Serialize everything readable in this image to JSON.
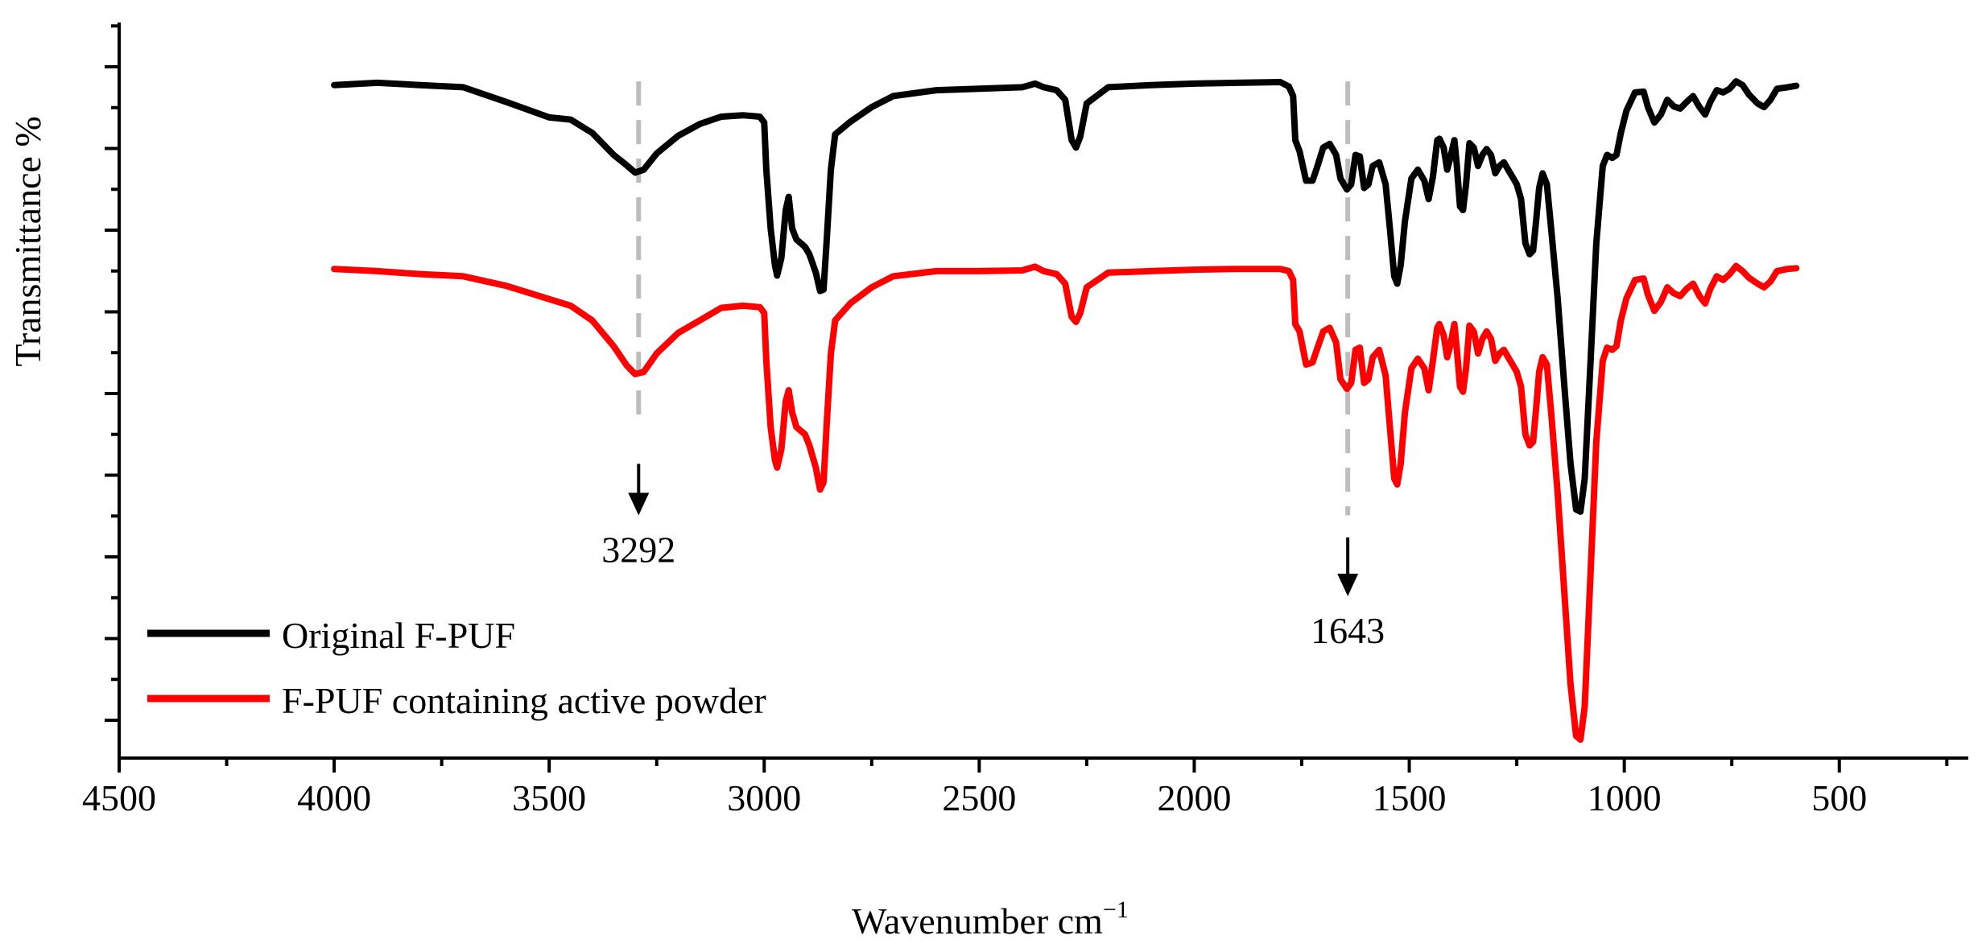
{
  "chart_data": {
    "type": "line",
    "title": "",
    "xlabel": "Wavenumber cm",
    "xlabel_sup": "−1",
    "ylabel": "Transmittance %",
    "xlim": [
      4500,
      200
    ],
    "ylim": [
      0,
      100
    ],
    "x_ticks": [
      4500,
      4000,
      3500,
      3000,
      2500,
      2000,
      1500,
      1000,
      500
    ],
    "x_tick_labels": [
      "4500",
      "4000",
      "3500",
      "3000",
      "2500",
      "2000",
      "1500",
      "1000",
      "500"
    ],
    "y_tick_labels_shown": false,
    "legend_position": "bottom-left",
    "series": [
      {
        "name": "Original F-PUF",
        "color": "#000000",
        "points": [
          [
            4000,
            91.5
          ],
          [
            3900,
            91.8
          ],
          [
            3800,
            91.5
          ],
          [
            3700,
            91.2
          ],
          [
            3600,
            89.2
          ],
          [
            3500,
            87.1
          ],
          [
            3450,
            86.8
          ],
          [
            3400,
            85.0
          ],
          [
            3350,
            82.0
          ],
          [
            3320,
            80.6
          ],
          [
            3300,
            79.6
          ],
          [
            3280,
            80.0
          ],
          [
            3250,
            82.2
          ],
          [
            3200,
            84.6
          ],
          [
            3150,
            86.2
          ],
          [
            3100,
            87.2
          ],
          [
            3050,
            87.4
          ],
          [
            3010,
            87.2
          ],
          [
            3000,
            86.4
          ],
          [
            2995,
            80.0
          ],
          [
            2985,
            72.0
          ],
          [
            2975,
            67.0
          ],
          [
            2970,
            65.6
          ],
          [
            2960,
            68.0
          ],
          [
            2950,
            74.5
          ],
          [
            2943,
            76.3
          ],
          [
            2935,
            72.0
          ],
          [
            2925,
            70.5
          ],
          [
            2915,
            70.0
          ],
          [
            2905,
            69.5
          ],
          [
            2895,
            68.5
          ],
          [
            2880,
            66.0
          ],
          [
            2870,
            63.5
          ],
          [
            2862,
            63.7
          ],
          [
            2855,
            70.0
          ],
          [
            2845,
            80.0
          ],
          [
            2835,
            84.8
          ],
          [
            2800,
            86.5
          ],
          [
            2750,
            88.5
          ],
          [
            2700,
            90.0
          ],
          [
            2600,
            90.8
          ],
          [
            2500,
            91.0
          ],
          [
            2400,
            91.2
          ],
          [
            2370,
            91.7
          ],
          [
            2350,
            91.2
          ],
          [
            2320,
            90.8
          ],
          [
            2300,
            89.5
          ],
          [
            2285,
            84.0
          ],
          [
            2275,
            83.0
          ],
          [
            2265,
            84.5
          ],
          [
            2250,
            89.0
          ],
          [
            2200,
            91.2
          ],
          [
            2100,
            91.5
          ],
          [
            2000,
            91.7
          ],
          [
            1900,
            91.8
          ],
          [
            1800,
            91.9
          ],
          [
            1780,
            91.3
          ],
          [
            1770,
            90.0
          ],
          [
            1765,
            84.0
          ],
          [
            1755,
            82.5
          ],
          [
            1740,
            78.5
          ],
          [
            1725,
            78.5
          ],
          [
            1715,
            80.2
          ],
          [
            1700,
            83.0
          ],
          [
            1685,
            83.5
          ],
          [
            1670,
            82.0
          ],
          [
            1660,
            78.8
          ],
          [
            1645,
            77.3
          ],
          [
            1635,
            78.0
          ],
          [
            1625,
            82.0
          ],
          [
            1615,
            81.8
          ],
          [
            1605,
            77.5
          ],
          [
            1595,
            78.0
          ],
          [
            1585,
            80.5
          ],
          [
            1570,
            81.0
          ],
          [
            1555,
            78.0
          ],
          [
            1545,
            72.0
          ],
          [
            1535,
            65.5
          ],
          [
            1528,
            64.5
          ],
          [
            1520,
            67.0
          ],
          [
            1510,
            73.0
          ],
          [
            1495,
            78.8
          ],
          [
            1480,
            80.0
          ],
          [
            1465,
            78.5
          ],
          [
            1455,
            76.0
          ],
          [
            1445,
            79.0
          ],
          [
            1435,
            84.0
          ],
          [
            1430,
            84.2
          ],
          [
            1420,
            83.0
          ],
          [
            1412,
            80.0
          ],
          [
            1405,
            81.5
          ],
          [
            1395,
            84.0
          ],
          [
            1390,
            81.0
          ],
          [
            1382,
            75.0
          ],
          [
            1375,
            74.5
          ],
          [
            1368,
            78.0
          ],
          [
            1360,
            83.6
          ],
          [
            1350,
            83.0
          ],
          [
            1340,
            80.5
          ],
          [
            1330,
            82.0
          ],
          [
            1320,
            82.8
          ],
          [
            1310,
            82.0
          ],
          [
            1300,
            79.5
          ],
          [
            1290,
            80.5
          ],
          [
            1280,
            81.0
          ],
          [
            1270,
            80.0
          ],
          [
            1260,
            79.0
          ],
          [
            1250,
            78.0
          ],
          [
            1240,
            76.0
          ],
          [
            1230,
            70.0
          ],
          [
            1220,
            68.5
          ],
          [
            1212,
            69.0
          ],
          [
            1205,
            73.0
          ],
          [
            1198,
            77.5
          ],
          [
            1190,
            79.5
          ],
          [
            1180,
            78.0
          ],
          [
            1170,
            72.0
          ],
          [
            1155,
            62.5
          ],
          [
            1140,
            51.0
          ],
          [
            1125,
            40.0
          ],
          [
            1112,
            33.8
          ],
          [
            1102,
            33.5
          ],
          [
            1092,
            38.0
          ],
          [
            1080,
            52.0
          ],
          [
            1065,
            70.0
          ],
          [
            1050,
            80.5
          ],
          [
            1040,
            82.0
          ],
          [
            1028,
            81.6
          ],
          [
            1018,
            82.0
          ],
          [
            1008,
            85.0
          ],
          [
            995,
            88.0
          ],
          [
            975,
            90.5
          ],
          [
            955,
            90.6
          ],
          [
            945,
            88.5
          ],
          [
            930,
            86.4
          ],
          [
            915,
            87.5
          ],
          [
            900,
            89.5
          ],
          [
            885,
            88.6
          ],
          [
            870,
            88.3
          ],
          [
            855,
            89.2
          ],
          [
            840,
            90.0
          ],
          [
            825,
            88.5
          ],
          [
            812,
            87.5
          ],
          [
            800,
            89.2
          ],
          [
            785,
            90.8
          ],
          [
            770,
            90.5
          ],
          [
            755,
            91.0
          ],
          [
            740,
            92.0
          ],
          [
            725,
            91.5
          ],
          [
            710,
            90.2
          ],
          [
            690,
            89.0
          ],
          [
            675,
            88.5
          ],
          [
            660,
            89.5
          ],
          [
            645,
            91.0
          ],
          [
            620,
            91.2
          ],
          [
            600,
            91.4
          ]
        ]
      },
      {
        "name": "F-PUF containing active powder",
        "color": "#ff0000",
        "points": [
          [
            4000,
            66.5
          ],
          [
            3900,
            66.2
          ],
          [
            3800,
            65.8
          ],
          [
            3700,
            65.5
          ],
          [
            3600,
            64.2
          ],
          [
            3500,
            62.4
          ],
          [
            3450,
            61.5
          ],
          [
            3400,
            59.5
          ],
          [
            3350,
            56.0
          ],
          [
            3320,
            53.4
          ],
          [
            3300,
            52.2
          ],
          [
            3280,
            52.5
          ],
          [
            3250,
            55.0
          ],
          [
            3200,
            57.8
          ],
          [
            3150,
            59.5
          ],
          [
            3100,
            61.2
          ],
          [
            3050,
            61.5
          ],
          [
            3010,
            61.3
          ],
          [
            3000,
            60.5
          ],
          [
            2995,
            54.0
          ],
          [
            2985,
            45.0
          ],
          [
            2975,
            40.5
          ],
          [
            2970,
            39.5
          ],
          [
            2960,
            42.0
          ],
          [
            2950,
            48.5
          ],
          [
            2943,
            50.0
          ],
          [
            2935,
            47.0
          ],
          [
            2925,
            45.0
          ],
          [
            2915,
            44.5
          ],
          [
            2905,
            44.0
          ],
          [
            2895,
            42.5
          ],
          [
            2880,
            39.5
          ],
          [
            2870,
            36.5
          ],
          [
            2862,
            37.5
          ],
          [
            2855,
            45.0
          ],
          [
            2845,
            55.0
          ],
          [
            2835,
            59.5
          ],
          [
            2800,
            61.8
          ],
          [
            2750,
            64.0
          ],
          [
            2700,
            65.5
          ],
          [
            2600,
            66.2
          ],
          [
            2500,
            66.2
          ],
          [
            2400,
            66.3
          ],
          [
            2370,
            66.8
          ],
          [
            2350,
            66.2
          ],
          [
            2320,
            65.8
          ],
          [
            2300,
            64.5
          ],
          [
            2285,
            60.0
          ],
          [
            2275,
            59.3
          ],
          [
            2265,
            60.5
          ],
          [
            2250,
            64.0
          ],
          [
            2200,
            66.0
          ],
          [
            2100,
            66.2
          ],
          [
            2000,
            66.4
          ],
          [
            1900,
            66.5
          ],
          [
            1800,
            66.5
          ],
          [
            1780,
            66.2
          ],
          [
            1770,
            65.0
          ],
          [
            1765,
            59.0
          ],
          [
            1755,
            58.0
          ],
          [
            1740,
            53.5
          ],
          [
            1725,
            53.8
          ],
          [
            1715,
            55.5
          ],
          [
            1700,
            58.0
          ],
          [
            1685,
            58.5
          ],
          [
            1670,
            56.5
          ],
          [
            1660,
            51.5
          ],
          [
            1645,
            50.2
          ],
          [
            1635,
            51.0
          ],
          [
            1625,
            55.5
          ],
          [
            1615,
            55.8
          ],
          [
            1605,
            51.0
          ],
          [
            1595,
            51.5
          ],
          [
            1585,
            54.5
          ],
          [
            1570,
            55.5
          ],
          [
            1555,
            52.0
          ],
          [
            1545,
            45.0
          ],
          [
            1535,
            38.0
          ],
          [
            1528,
            37.2
          ],
          [
            1520,
            40.0
          ],
          [
            1510,
            47.0
          ],
          [
            1495,
            53.0
          ],
          [
            1480,
            54.3
          ],
          [
            1465,
            53.0
          ],
          [
            1455,
            50.0
          ],
          [
            1445,
            54.0
          ],
          [
            1435,
            58.5
          ],
          [
            1430,
            59.0
          ],
          [
            1420,
            57.5
          ],
          [
            1412,
            54.5
          ],
          [
            1405,
            56.0
          ],
          [
            1395,
            59.0
          ],
          [
            1390,
            56.0
          ],
          [
            1382,
            50.5
          ],
          [
            1375,
            49.8
          ],
          [
            1368,
            53.0
          ],
          [
            1360,
            58.8
          ],
          [
            1350,
            58.0
          ],
          [
            1340,
            55.0
          ],
          [
            1330,
            57.0
          ],
          [
            1320,
            58.0
          ],
          [
            1310,
            57.0
          ],
          [
            1300,
            54.0
          ],
          [
            1290,
            55.0
          ],
          [
            1280,
            55.5
          ],
          [
            1270,
            54.5
          ],
          [
            1260,
            53.5
          ],
          [
            1250,
            52.5
          ],
          [
            1240,
            50.5
          ],
          [
            1230,
            44.0
          ],
          [
            1220,
            42.5
          ],
          [
            1212,
            43.0
          ],
          [
            1205,
            47.5
          ],
          [
            1198,
            52.5
          ],
          [
            1190,
            54.5
          ],
          [
            1180,
            53.5
          ],
          [
            1170,
            47.0
          ],
          [
            1155,
            36.0
          ],
          [
            1140,
            23.0
          ],
          [
            1125,
            10.0
          ],
          [
            1112,
            3.0
          ],
          [
            1102,
            2.5
          ],
          [
            1092,
            7.0
          ],
          [
            1080,
            23.0
          ],
          [
            1065,
            43.0
          ],
          [
            1050,
            54.0
          ],
          [
            1040,
            55.8
          ],
          [
            1028,
            55.5
          ],
          [
            1018,
            56.0
          ],
          [
            1008,
            59.5
          ],
          [
            995,
            62.5
          ],
          [
            975,
            65.0
          ],
          [
            955,
            65.2
          ],
          [
            945,
            63.0
          ],
          [
            930,
            60.8
          ],
          [
            915,
            62.0
          ],
          [
            900,
            64.0
          ],
          [
            885,
            63.2
          ],
          [
            870,
            62.8
          ],
          [
            855,
            63.8
          ],
          [
            840,
            64.5
          ],
          [
            825,
            62.8
          ],
          [
            812,
            61.8
          ],
          [
            800,
            63.8
          ],
          [
            785,
            65.5
          ],
          [
            770,
            65.0
          ],
          [
            755,
            65.8
          ],
          [
            740,
            66.9
          ],
          [
            725,
            66.2
          ],
          [
            710,
            65.3
          ],
          [
            690,
            64.5
          ],
          [
            675,
            64.0
          ],
          [
            660,
            64.8
          ],
          [
            645,
            66.2
          ],
          [
            620,
            66.5
          ],
          [
            600,
            66.6
          ]
        ]
      }
    ],
    "annotations": [
      {
        "label": "3292",
        "x": 3292,
        "guide_from_y": 92,
        "guide_to_y": 45,
        "arrow_from_y": 40,
        "arrow_to_y": 33
      },
      {
        "label": "1643",
        "x": 1643,
        "guide_from_y": 92,
        "guide_to_y": 33,
        "arrow_from_y": 30,
        "arrow_to_y": 22
      }
    ]
  }
}
